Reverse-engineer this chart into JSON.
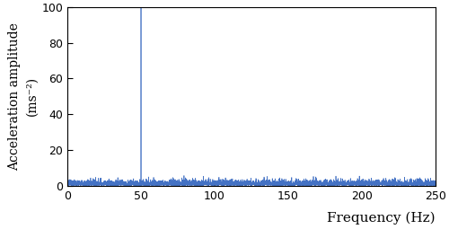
{
  "xlim": [
    0,
    250
  ],
  "ylim": [
    0,
    100
  ],
  "xticks": [
    0,
    50,
    100,
    150,
    200,
    250
  ],
  "yticks": [
    0,
    20,
    40,
    60,
    80,
    100
  ],
  "xlabel": "Frequency (Hz)",
  "ylabel_line1": "Acceleration amplitude",
  "ylabel_line2": "(ms⁻²)",
  "line_color": "#4472C4",
  "spike_freq": 50,
  "spike_amplitude": 100,
  "noise_amplitude": 1.5,
  "noise_seed": 7,
  "num_points": 5000,
  "xlabel_fontsize": 11,
  "ylabel_fontsize": 10,
  "tick_fontsize": 9,
  "linewidth": 0.5,
  "figure_facecolor": "#ffffff"
}
